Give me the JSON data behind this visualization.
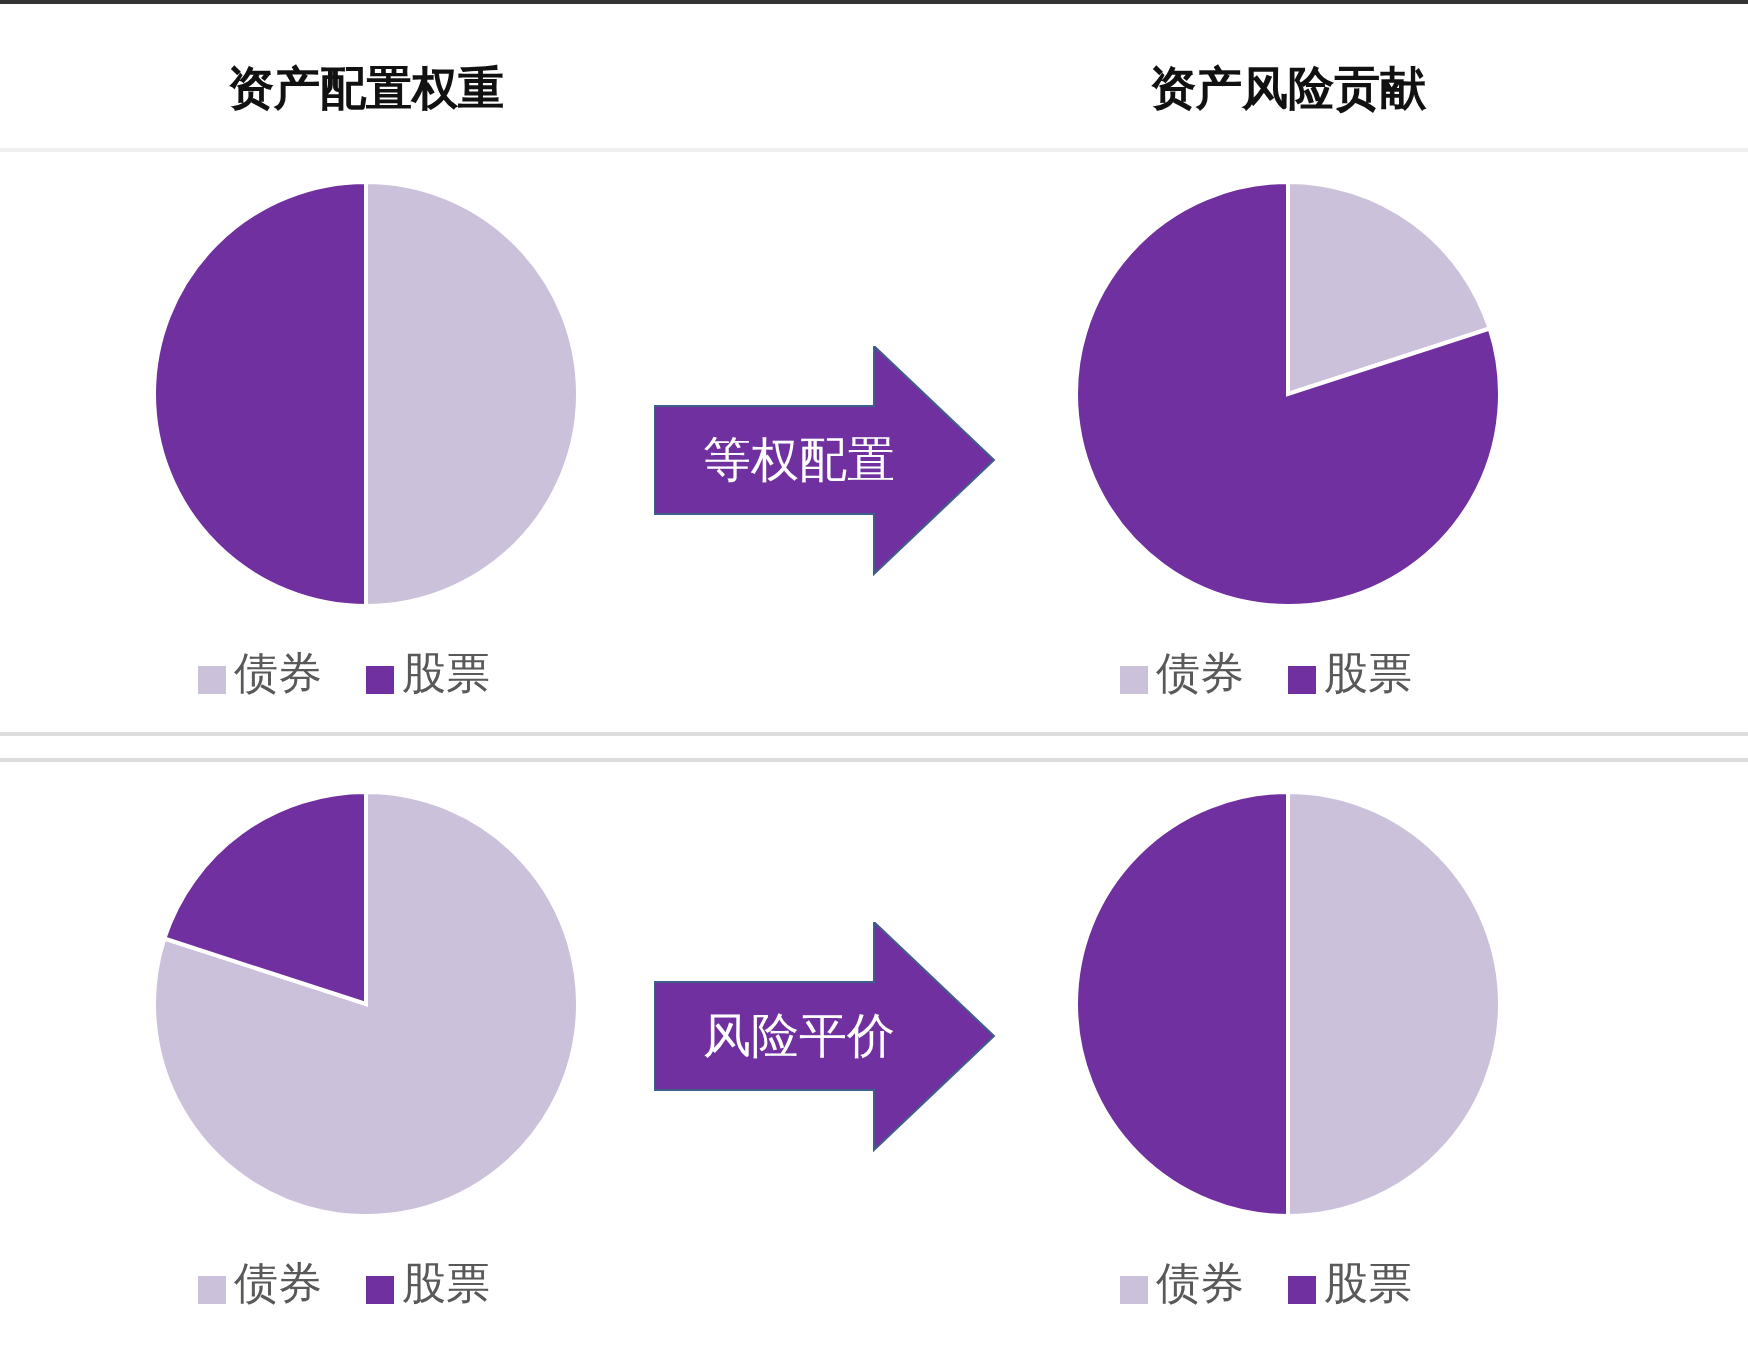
{
  "chart_data": [
    {
      "type": "pie",
      "title": "资产配置权重",
      "categories": [
        "债券",
        "股票"
      ],
      "values": [
        50,
        50
      ],
      "colors": [
        "#ccc1da",
        "#7030a0"
      ],
      "legend": "bottom",
      "annotations": [
        "等权配置"
      ]
    },
    {
      "type": "pie",
      "title": "资产风险贡献",
      "categories": [
        "债券",
        "股票"
      ],
      "values": [
        20,
        80
      ],
      "colors": [
        "#ccc1da",
        "#7030a0"
      ],
      "legend": "bottom"
    },
    {
      "type": "pie",
      "categories": [
        "债券",
        "股票"
      ],
      "values": [
        80,
        20
      ],
      "colors": [
        "#ccc1da",
        "#7030a0"
      ],
      "legend": "bottom",
      "annotations": [
        "风险平价"
      ]
    },
    {
      "type": "pie",
      "categories": [
        "债券",
        "股票"
      ],
      "values": [
        50,
        50
      ],
      "colors": [
        "#ccc1da",
        "#7030a0"
      ],
      "legend": "bottom"
    }
  ]
}
